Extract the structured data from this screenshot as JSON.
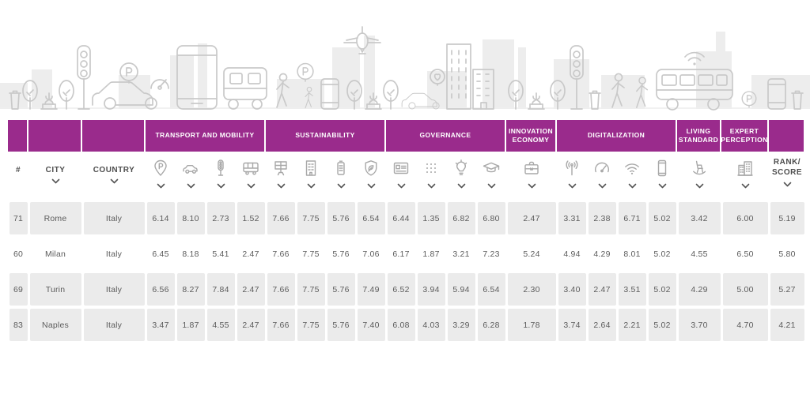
{
  "colors": {
    "accent": "#9a2b8c",
    "chip": "#ebebeb",
    "icon_stroke": "#a8a8a8",
    "text": "#5c5c5c"
  },
  "table": {
    "column_groups": [
      {
        "label": "",
        "span": 1
      },
      {
        "label": "",
        "span": 1
      },
      {
        "label": "",
        "span": 1
      },
      {
        "label": "TRANSPORT AND MOBILITY",
        "span": 4
      },
      {
        "label": "SUSTAINABILITY",
        "span": 4
      },
      {
        "label": "GOVERNANCE",
        "span": 4
      },
      {
        "label": "INNOVATION ECONOMY",
        "span": 1
      },
      {
        "label": "DIGITALIZATION",
        "span": 4
      },
      {
        "label": "LIVING STANDARD",
        "span": 1
      },
      {
        "label": "EXPERT PERCEPTION",
        "span": 1
      },
      {
        "label": "",
        "span": 1
      }
    ],
    "columns": [
      {
        "type": "text",
        "label": "#",
        "sortable": false,
        "name": "rank-number"
      },
      {
        "type": "text",
        "label": "CITY",
        "sortable": true,
        "name": "city"
      },
      {
        "type": "text",
        "label": "COUNTRY",
        "sortable": true,
        "name": "country"
      },
      {
        "type": "icon",
        "icon": "parking-pin-icon",
        "sortable": true,
        "name": "parking"
      },
      {
        "type": "icon",
        "icon": "car-icon",
        "sortable": true,
        "name": "car-sharing"
      },
      {
        "type": "icon",
        "icon": "traffic-light-icon",
        "sortable": true,
        "name": "traffic"
      },
      {
        "type": "icon",
        "icon": "bus-icon",
        "sortable": true,
        "name": "public-transport"
      },
      {
        "type": "icon",
        "icon": "solar-panel-icon",
        "sortable": true,
        "name": "clean-energy"
      },
      {
        "type": "icon",
        "icon": "green-building-icon",
        "sortable": true,
        "name": "green-buildings"
      },
      {
        "type": "icon",
        "icon": "battery-icon",
        "sortable": true,
        "name": "waste-management"
      },
      {
        "type": "icon",
        "icon": "eco-shield-icon",
        "sortable": true,
        "name": "environment-protection"
      },
      {
        "type": "icon",
        "icon": "id-card-icon",
        "sortable": true,
        "name": "digital-government"
      },
      {
        "type": "icon",
        "icon": "dots-grid-icon",
        "sortable": true,
        "name": "urban-planning"
      },
      {
        "type": "icon",
        "icon": "lightbulb-icon",
        "sortable": true,
        "name": "innovation"
      },
      {
        "type": "icon",
        "icon": "graduation-cap-icon",
        "sortable": true,
        "name": "education"
      },
      {
        "type": "icon",
        "icon": "briefcase-icon",
        "sortable": true,
        "name": "business-ecosystem"
      },
      {
        "type": "icon",
        "icon": "antenna-icon",
        "sortable": true,
        "name": "connectivity"
      },
      {
        "type": "icon",
        "icon": "speedometer-icon",
        "sortable": true,
        "name": "internet-speed"
      },
      {
        "type": "icon",
        "icon": "wifi-icon",
        "sortable": true,
        "name": "wifi-hotspots"
      },
      {
        "type": "icon",
        "icon": "smartphone-icon",
        "sortable": true,
        "name": "smartphone-usage"
      },
      {
        "type": "icon",
        "icon": "rocking-chair-icon",
        "sortable": true,
        "name": "living-standard"
      },
      {
        "type": "icon",
        "icon": "city-buildings-icon",
        "sortable": true,
        "name": "expert-perception"
      },
      {
        "type": "text",
        "label_lines": [
          "RANK/",
          "SCORE"
        ],
        "sortable": true,
        "name": "rank-score"
      }
    ],
    "rows": [
      {
        "rank": "71",
        "city": "Rome",
        "country": "Italy",
        "shaded": true,
        "values": [
          "6.14",
          "8.10",
          "2.73",
          "1.52",
          "7.66",
          "7.75",
          "5.76",
          "6.54",
          "6.44",
          "1.35",
          "6.82",
          "6.80",
          "2.47",
          "3.31",
          "2.38",
          "6.71",
          "5.02",
          "3.42",
          "6.00",
          "5.19"
        ]
      },
      {
        "rank": "60",
        "city": "Milan",
        "country": "Italy",
        "shaded": false,
        "values": [
          "6.45",
          "8.18",
          "5.41",
          "2.47",
          "7.66",
          "7.75",
          "5.76",
          "7.06",
          "6.17",
          "1.87",
          "3.21",
          "7.23",
          "5.24",
          "4.94",
          "4.29",
          "8.01",
          "5.02",
          "4.55",
          "6.50",
          "5.80"
        ]
      },
      {
        "rank": "69",
        "city": "Turin",
        "country": "Italy",
        "shaded": true,
        "values": [
          "6.56",
          "8.27",
          "7.84",
          "2.47",
          "7.66",
          "7.75",
          "5.76",
          "7.49",
          "6.52",
          "3.94",
          "5.94",
          "6.54",
          "2.30",
          "3.40",
          "2.47",
          "3.51",
          "5.02",
          "4.29",
          "5.00",
          "5.27"
        ]
      },
      {
        "rank": "83",
        "city": "Naples",
        "country": "Italy",
        "shaded": true,
        "values": [
          "3.47",
          "1.87",
          "4.55",
          "2.47",
          "7.66",
          "7.75",
          "5.76",
          "7.40",
          "6.08",
          "4.03",
          "3.29",
          "6.28",
          "1.78",
          "3.74",
          "2.64",
          "2.21",
          "5.02",
          "3.70",
          "4.70",
          "4.21"
        ]
      }
    ]
  }
}
